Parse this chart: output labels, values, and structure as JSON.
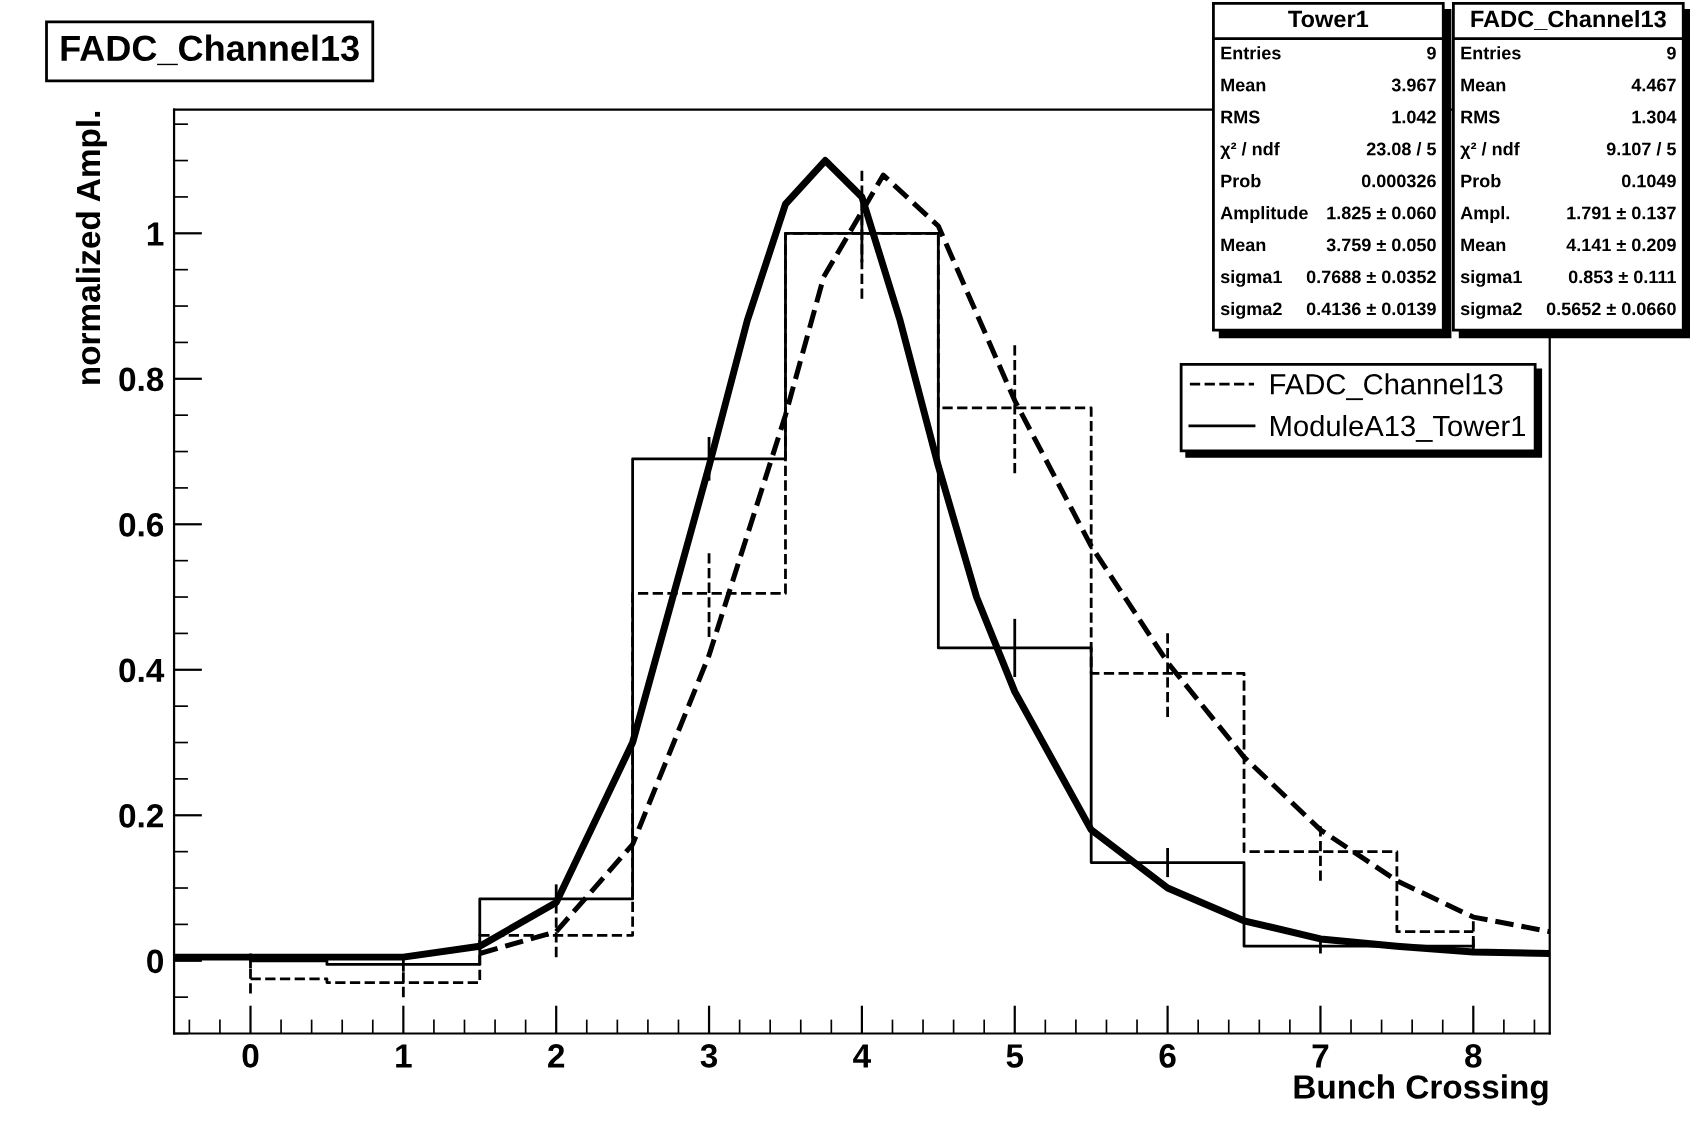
{
  "chart_data": {
    "type": "step",
    "title": "FADC_Channel13",
    "xlabel": "Bunch Crossing",
    "ylabel": "normalized Ampl.",
    "x": [
      0,
      1,
      2,
      3,
      4,
      5,
      6,
      7,
      8
    ],
    "series": [
      {
        "name": "FADC_Channel13",
        "color": "#000000",
        "line_style": "dashed",
        "values": [
          -0.025,
          -0.03,
          0.035,
          0.505,
          1.0,
          0.76,
          0.395,
          0.15,
          0.04
        ],
        "errors": [
          0.02,
          0.02,
          0.03,
          0.06,
          0.09,
          0.09,
          0.06,
          0.04,
          0.02
        ]
      },
      {
        "name": "ModuleA13_Tower1",
        "color": "#000000",
        "line_style": "solid",
        "values": [
          0.0,
          -0.005,
          0.085,
          0.69,
          1.0,
          0.43,
          0.135,
          0.02,
          0.02
        ],
        "errors": [
          0.01,
          0.01,
          0.02,
          0.03,
          0.04,
          0.04,
          0.02,
          0.01,
          0.01
        ]
      },
      {
        "type": "line",
        "color": "#000000",
        "line_style": "dashed",
        "x": [
          1.5,
          2.0,
          2.5,
          3.0,
          3.5,
          3.75,
          4.14,
          4.5,
          5.0,
          5.5,
          6.0,
          6.5,
          7.0,
          7.5,
          8.0,
          8.5
        ],
        "values": [
          0.01,
          0.04,
          0.16,
          0.42,
          0.75,
          0.94,
          1.08,
          1.01,
          0.77,
          0.57,
          0.41,
          0.28,
          0.18,
          0.11,
          0.06,
          0.04
        ]
      },
      {
        "type": "line",
        "color": "#000000",
        "line_style": "solid",
        "x": [
          -0.5,
          1.0,
          1.5,
          2.0,
          2.5,
          3.0,
          3.25,
          3.5,
          3.76,
          4.0,
          4.25,
          4.5,
          4.75,
          5.0,
          5.5,
          6.0,
          6.5,
          7.0,
          7.5,
          8.0,
          8.5
        ],
        "values": [
          0.005,
          0.005,
          0.02,
          0.08,
          0.3,
          0.68,
          0.88,
          1.04,
          1.1,
          1.05,
          0.88,
          0.68,
          0.5,
          0.37,
          0.18,
          0.1,
          0.055,
          0.03,
          0.02,
          0.012,
          0.01
        ]
      }
    ],
    "xlim": [
      -0.5,
      8.5
    ],
    "ylim": [
      -0.1,
      1.17
    ],
    "xticks": [
      0,
      1,
      2,
      3,
      4,
      5,
      6,
      7,
      8
    ],
    "yticks": [
      0,
      0.2,
      0.4,
      0.6,
      0.8,
      1
    ],
    "grid": false,
    "legend": "top right",
    "annotations": [
      "Tower1",
      "Entries",
      "9",
      "Mean",
      "3.967",
      "RMS",
      "1.042",
      "χ² / ndf",
      "23.08 / 5",
      "Prob",
      "0.000326",
      "Amplitude",
      "1.825 ± 0.060",
      "Mean",
      "3.759 ± 0.050",
      "sigma1",
      "0.7688 ± 0.0352",
      "sigma2",
      "0.4136 ± 0.0139",
      "FADC_Channel13",
      "Entries",
      "9",
      "Mean",
      "4.467",
      "RMS",
      "1.304",
      "χ² / ndf",
      "9.107 / 5",
      "Prob",
      "0.1049",
      "Ampl.",
      "1.791 ± 0.137",
      "Mean",
      "4.141 ± 0.209",
      "sigma1",
      "0.853 ± 0.111",
      "sigma2",
      "0.5652 ± 0.0660"
    ]
  }
}
